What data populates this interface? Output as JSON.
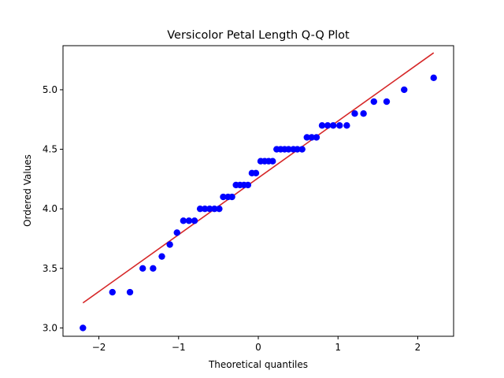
{
  "chart_data": {
    "type": "scatter",
    "title": "Versicolor Petal Length Q-Q Plot",
    "xlabel": "Theoretical quantiles",
    "ylabel": "Ordered Values",
    "xlim": [
      -2.45,
      2.45
    ],
    "ylim": [
      2.93,
      5.37
    ],
    "xticks": [
      -2,
      -1,
      0,
      1,
      2
    ],
    "xtick_labels": [
      "−2",
      "−1",
      "0",
      "1",
      "2"
    ],
    "yticks": [
      3.0,
      3.5,
      4.0,
      4.5,
      5.0
    ],
    "ytick_labels": [
      "3.0",
      "3.5",
      "4.0",
      "4.5",
      "5.0"
    ],
    "grid": false,
    "legend": "none",
    "colors": {
      "points": "#0000ff",
      "fit_line": "#d62728"
    },
    "series": [
      {
        "kind": "points",
        "x": [
          -2.2,
          -1.83,
          -1.61,
          -1.45,
          -1.32,
          -1.21,
          -1.11,
          -1.02,
          -0.94,
          -0.87,
          -0.8,
          -0.73,
          -0.67,
          -0.61,
          -0.55,
          -0.49,
          -0.44,
          -0.38,
          -0.33,
          -0.28,
          -0.23,
          -0.18,
          -0.13,
          -0.08,
          -0.03,
          0.03,
          0.08,
          0.13,
          0.18,
          0.23,
          0.28,
          0.33,
          0.38,
          0.44,
          0.49,
          0.55,
          0.61,
          0.67,
          0.73,
          0.8,
          0.87,
          0.94,
          1.02,
          1.11,
          1.21,
          1.32,
          1.45,
          1.61,
          1.83,
          2.2
        ],
        "y": [
          3.0,
          3.3,
          3.3,
          3.5,
          3.5,
          3.6,
          3.7,
          3.8,
          3.9,
          3.9,
          3.9,
          4.0,
          4.0,
          4.0,
          4.0,
          4.0,
          4.1,
          4.1,
          4.1,
          4.2,
          4.2,
          4.2,
          4.2,
          4.3,
          4.3,
          4.4,
          4.4,
          4.4,
          4.4,
          4.5,
          4.5,
          4.5,
          4.5,
          4.5,
          4.5,
          4.5,
          4.6,
          4.6,
          4.6,
          4.7,
          4.7,
          4.7,
          4.7,
          4.7,
          4.8,
          4.8,
          4.9,
          4.9,
          5.0,
          5.1
        ]
      },
      {
        "kind": "line",
        "x": [
          -2.2,
          2.2
        ],
        "y": [
          3.21,
          5.31
        ]
      }
    ]
  }
}
